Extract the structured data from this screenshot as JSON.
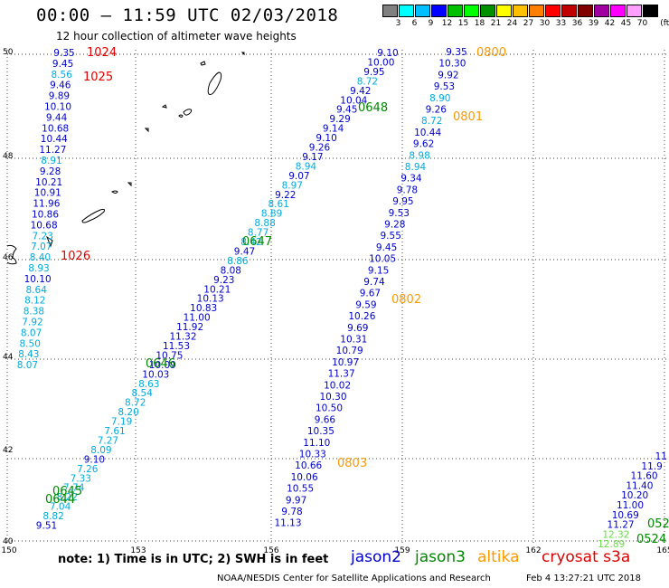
{
  "header": {
    "title": "00:00 – 11:59 UTC 02/03/2018",
    "subtitle": "12 hour collection of altimeter wave heights"
  },
  "colorbar": {
    "unit": "(ft)",
    "colors": [
      "#808080",
      "#00ffff",
      "#00bfff",
      "#0000ff",
      "#00c000",
      "#00ff00",
      "#009000",
      "#ffff00",
      "#ffc000",
      "#ff8000",
      "#ff0000",
      "#c00000",
      "#800000",
      "#a000a0",
      "#ff00ff",
      "#ffa0ff",
      "#000000"
    ],
    "ticks": [
      "3",
      "6",
      "9",
      "12",
      "15",
      "18",
      "21",
      "24",
      "27",
      "30",
      "33",
      "36",
      "39",
      "42",
      "45",
      "70"
    ]
  },
  "map": {
    "lon_ticks": [
      "150",
      "153",
      "156",
      "159",
      "162",
      "165"
    ],
    "lat_ticks": [
      "50",
      "48",
      "46",
      "44",
      "42",
      "40"
    ],
    "grid": true
  },
  "colors": {
    "jason2": "#0000cc",
    "jason3": "#008800",
    "altika": "#ff9900",
    "cryosat": "#dd0000",
    "sky": "#00aadd",
    "lightgreen": "#66dd44"
  },
  "tracks": {
    "far_left": {
      "values": [
        "9.35",
        "9.45",
        "8.56",
        "9.46",
        "9.89",
        "10.10",
        "9.44",
        "10.68",
        "10.44",
        "11.27",
        "8.91",
        "9.28",
        "10.21",
        "10.91",
        "11.96",
        "10.86",
        "10.68",
        "7.23",
        "7.07",
        "8.40",
        "8.93",
        "10.10",
        "8.64",
        "8.12",
        "8.38",
        "7.92",
        "8.07",
        "8.50",
        "8.43",
        "8.07"
      ],
      "colors": [
        "jason2",
        "jason2",
        "sky",
        "jason2",
        "jason2",
        "jason2",
        "jason2",
        "jason2",
        "jason2",
        "jason2",
        "sky",
        "jason2",
        "jason2",
        "jason2",
        "jason2",
        "jason2",
        "jason2",
        "sky",
        "sky",
        "sky",
        "sky",
        "jason2",
        "sky",
        "sky",
        "sky",
        "sky",
        "sky",
        "sky",
        "sky",
        "sky"
      ]
    },
    "diagonal_1": {
      "values": [
        "9.10",
        "10.00",
        "9.95",
        "8.72",
        "9.42",
        "10.04",
        "9.45",
        "9.29",
        "9.14",
        "9.10",
        "9.26",
        "9.17",
        "8.94",
        "9.07",
        "8.97",
        "9.22",
        "8.61",
        "8.89",
        "8.88",
        "8.77",
        "8.42",
        "9.47",
        "8.86",
        "8.08",
        "9.23",
        "10.21",
        "10.13",
        "10.83",
        "11.00",
        "11.92",
        "11.32",
        "11.53",
        "10.75",
        "10.09",
        "10.03",
        "8.63",
        "8.54",
        "8.72",
        "8.20",
        "7.19",
        "7.61",
        "7.27",
        "8.09",
        "9.10",
        "7.26",
        "7.33",
        "7.74",
        "8.22",
        "7.04",
        "8.82",
        "9.51"
      ],
      "colors": [
        "jason2",
        "jason2",
        "jason2",
        "sky",
        "jason2",
        "jason2",
        "jason2",
        "jason2",
        "jason2",
        "jason2",
        "jason2",
        "jason2",
        "sky",
        "jason2",
        "sky",
        "jason2",
        "sky",
        "sky",
        "sky",
        "sky",
        "sky",
        "jason2",
        "sky",
        "jason2",
        "jason2",
        "jason2",
        "jason2",
        "jason2",
        "jason2",
        "jason2",
        "jason2",
        "jason2",
        "jason2",
        "jason2",
        "jason2",
        "sky",
        "sky",
        "sky",
        "sky",
        "sky",
        "sky",
        "sky",
        "sky",
        "jason2",
        "sky",
        "sky",
        "sky",
        "sky",
        "sky",
        "sky",
        "jason2"
      ]
    },
    "diagonal_2": {
      "values": [
        "9.35",
        "10.30",
        "9.92",
        "9.53",
        "8.90",
        "9.26",
        "8.72",
        "10.44",
        "9.62",
        "8.98",
        "8.94",
        "9.34",
        "9.78",
        "9.95",
        "9.53",
        "9.28",
        "9.55",
        "9.45",
        "10.05",
        "9.15",
        "9.74",
        "9.67",
        "9.59",
        "10.26",
        "9.69",
        "10.31",
        "10.79",
        "10.97",
        "11.37",
        "10.02",
        "10.30",
        "10.50",
        "9.66",
        "10.35",
        "11.10",
        "10.33",
        "10.66",
        "10.06",
        "10.55",
        "9.97",
        "9.78",
        "11.13"
      ],
      "colors": [
        "jason2",
        "jason2",
        "jason2",
        "jason2",
        "sky",
        "jason2",
        "sky",
        "jason2",
        "jason2",
        "sky",
        "sky",
        "jason2",
        "jason2",
        "jason2",
        "jason2",
        "jason2",
        "jason2",
        "jason2",
        "jason2",
        "jason2",
        "jason2",
        "jason2",
        "jason2",
        "jason2",
        "jason2",
        "jason2",
        "jason2",
        "jason2",
        "jason2",
        "jason2",
        "jason2",
        "jason2",
        "jason2",
        "jason2",
        "jason2",
        "jason2",
        "jason2",
        "jason2",
        "jason2",
        "jason2",
        "jason2",
        "jason2"
      ]
    },
    "right_edge": {
      "values": [
        "11",
        "11.9",
        "11.60",
        "11.40",
        "10.20",
        "11.00",
        "10.69",
        "11.27",
        "12.32",
        "12.89"
      ],
      "colors": [
        "jason2",
        "jason2",
        "jason2",
        "jason2",
        "jason2",
        "jason2",
        "jason2",
        "jason2",
        "lightgreen",
        "lightgreen"
      ]
    }
  },
  "time_labels": [
    {
      "text": "1024",
      "sat": "cryosat"
    },
    {
      "text": "1025",
      "sat": "cryosat"
    },
    {
      "text": "1026",
      "sat": "cryosat"
    },
    {
      "text": "0800",
      "sat": "altika"
    },
    {
      "text": "0801",
      "sat": "altika"
    },
    {
      "text": "0802",
      "sat": "altika"
    },
    {
      "text": "0803",
      "sat": "altika"
    },
    {
      "text": "0648",
      "sat": "jason3"
    },
    {
      "text": "0647",
      "sat": "jason3"
    },
    {
      "text": "0646",
      "sat": "jason3"
    },
    {
      "text": "0645",
      "sat": "jason3"
    },
    {
      "text": "0644",
      "sat": "jason3"
    },
    {
      "text": "052",
      "sat": "jason3"
    },
    {
      "text": "0524",
      "sat": "jason3"
    }
  ],
  "footer": {
    "note": "note: 1) Time is in UTC; 2) SWH is in feet",
    "satellites": [
      {
        "name": "jason2",
        "color": "#0000cc"
      },
      {
        "name": "jason3",
        "color": "#008800"
      },
      {
        "name": "altika",
        "color": "#ff9900"
      },
      {
        "name": "cryosat s3a",
        "color": "#dd0000"
      }
    ],
    "credit": "NOAA/NESDIS Center for Satellite Applications and Research",
    "generated": "Feb  4 13:27:21 UTC 2018"
  }
}
